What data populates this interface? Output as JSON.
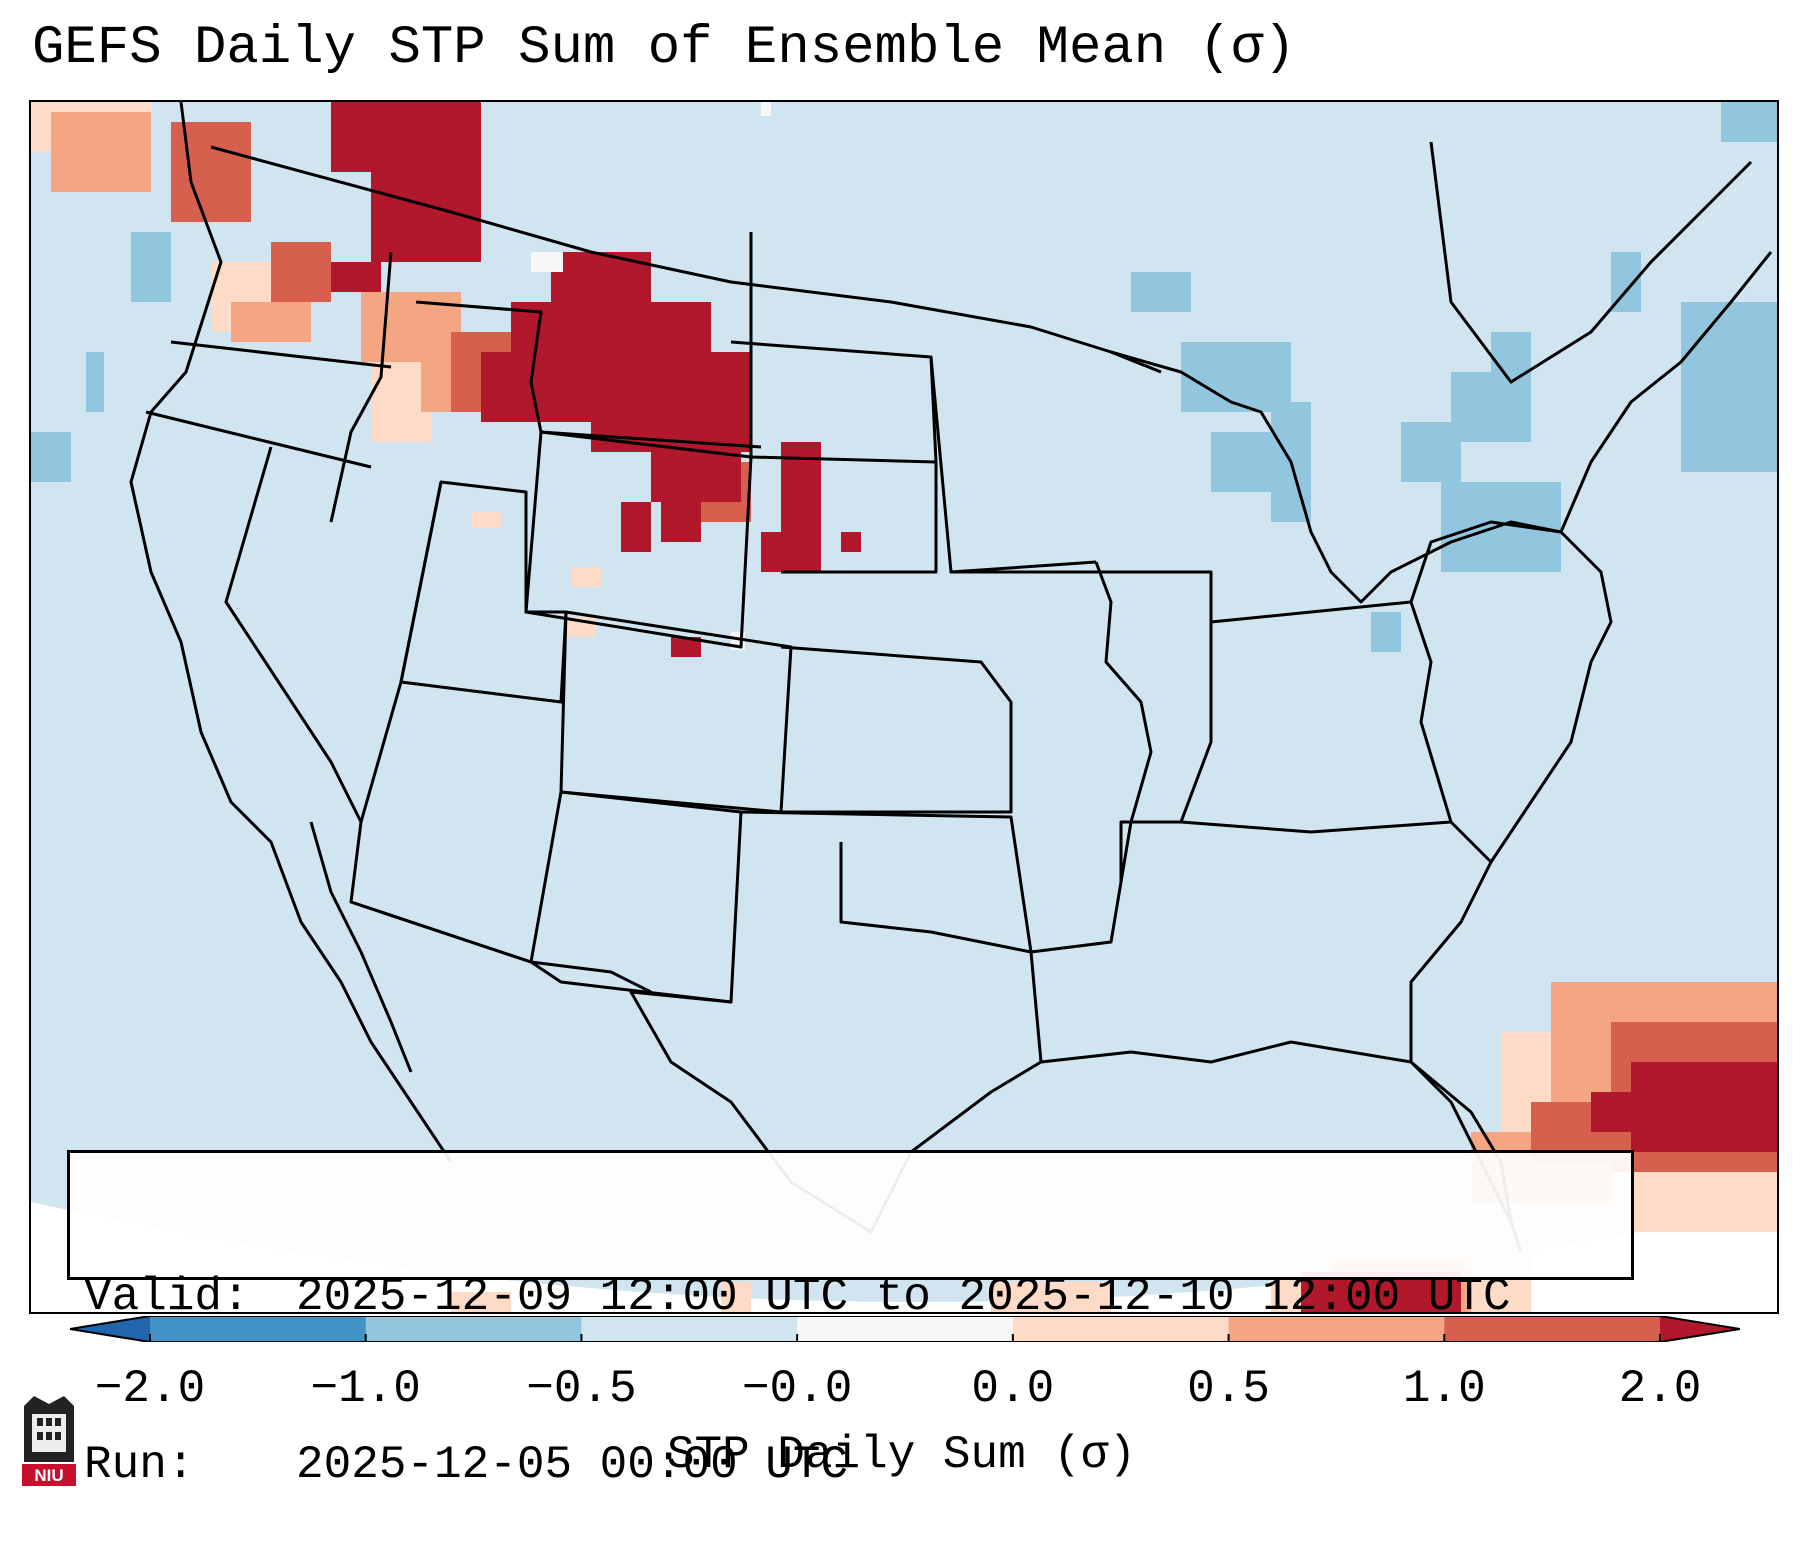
{
  "title": "GEFS Daily STP Sum of Ensemble Mean (σ)",
  "info_box": {
    "valid_label": "Valid:",
    "valid_value": "2025-12-09 12:00 UTC to 2025-12-10 12:00 UTC",
    "run_label": "Run:",
    "run_value": "2025-12-05 00:00 UTC"
  },
  "colorbar": {
    "label": "STP Daily Sum (σ)",
    "ticks": [
      "−2.0",
      "−1.0",
      "−0.5",
      "−0.0",
      "0.0",
      "0.5",
      "1.0",
      "2.0"
    ],
    "bins": [
      {
        "from": -2.0,
        "to": -1.0,
        "color": "#4292c6"
      },
      {
        "from": -1.0,
        "to": -0.5,
        "color": "#92c5de"
      },
      {
        "from": -0.5,
        "to": -0.0,
        "color": "#d1e5f0"
      },
      {
        "from": -0.0,
        "to": 0.0,
        "color": "#f7f7f7"
      },
      {
        "from": 0.0,
        "to": 0.5,
        "color": "#fddbc7"
      },
      {
        "from": 0.5,
        "to": 1.0,
        "color": "#f4a582"
      },
      {
        "from": 1.0,
        "to": 2.0,
        "color": "#d6604d"
      }
    ],
    "under_color": "#2166ac",
    "over_color": "#b2182b",
    "extend": "both"
  },
  "map": {
    "projection": "Lambert Conformal",
    "region": "Contiguous United States",
    "background_value_color": "#d1e5f0",
    "outside_domain_color": "#ffffff",
    "border_color": "#000000"
  },
  "colors": {
    "strong_positive": "#b2182b",
    "positive": "#d6604d",
    "moderate_positive": "#f4a582",
    "weak_positive": "#fddbc7",
    "near_zero": "#f7f7f7",
    "weak_negative": "#d1e5f0",
    "moderate_negative": "#92c5de"
  },
  "logo": {
    "name": "niu-logo",
    "text": "NIU"
  }
}
